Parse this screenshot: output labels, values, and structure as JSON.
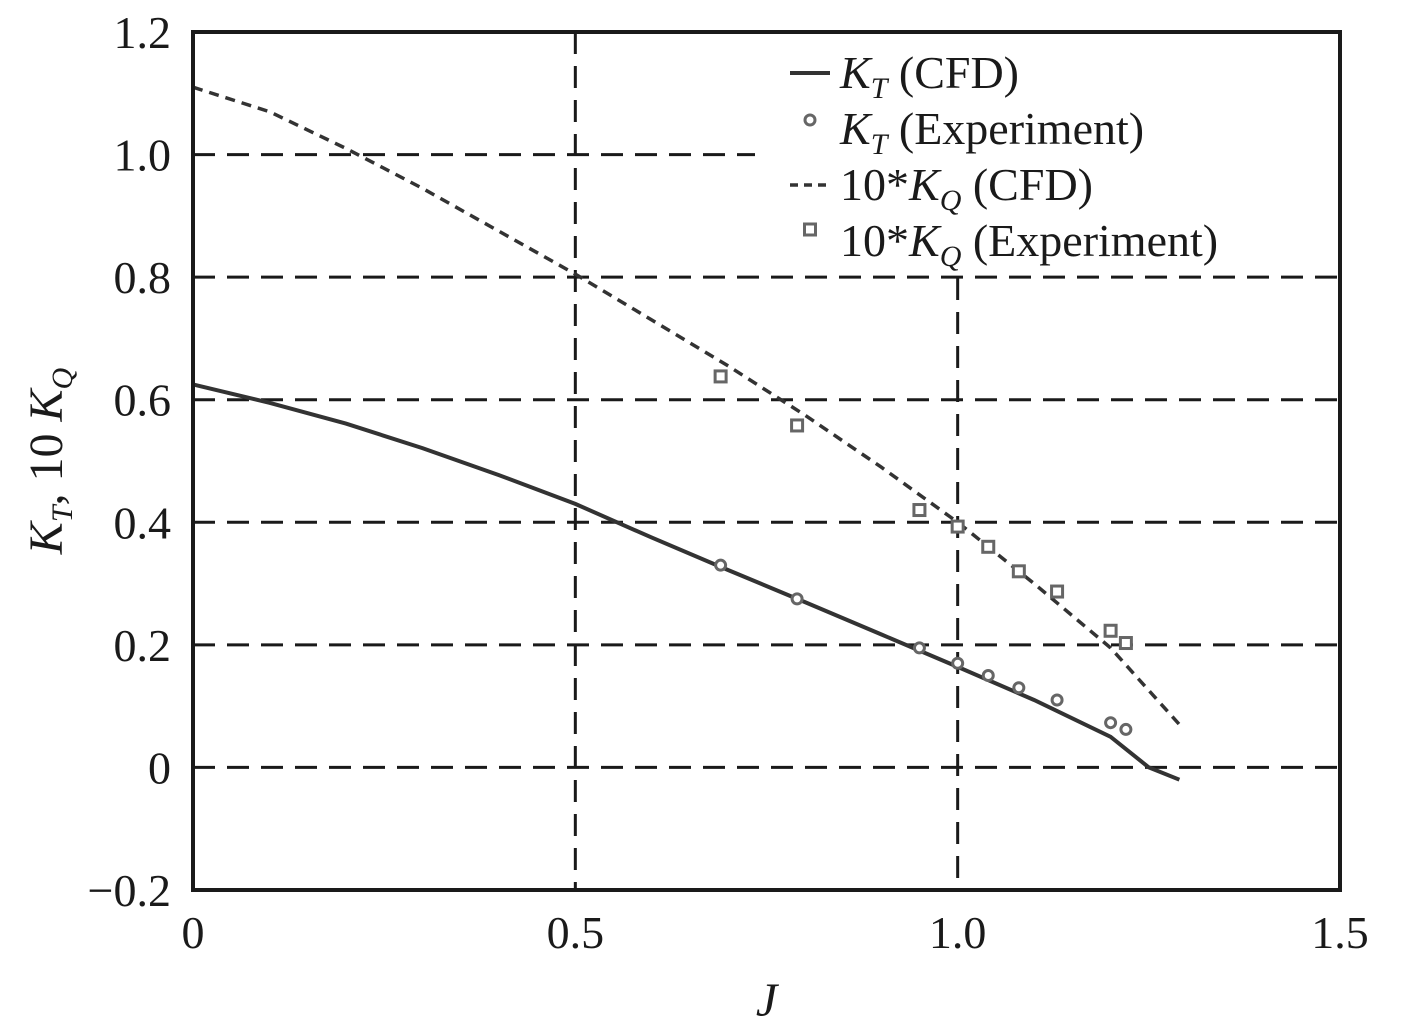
{
  "chart_data": {
    "type": "line",
    "xlabel": "J",
    "ylabel": {
      "main": "K",
      "sub1": "T",
      "mid": ", 10 ",
      "main2": "K",
      "sub2": "Q"
    },
    "xlim": [
      0,
      1.5
    ],
    "ylim": [
      -0.2,
      1.2
    ],
    "x_ticks": [
      0,
      0.5,
      1.0,
      1.5
    ],
    "x_tick_labels": [
      "0",
      "0.5",
      "1.0",
      "1.5"
    ],
    "y_ticks": [
      -0.2,
      0,
      0.2,
      0.4,
      0.6,
      0.8,
      1.0,
      1.2
    ],
    "y_tick_labels": [
      "−0.2",
      "0",
      "0.2",
      "0.4",
      "0.6",
      "0.8",
      "1.0",
      "1.2"
    ],
    "grid": true,
    "legend_position": "top-right",
    "series": [
      {
        "kind": "solid-line",
        "legend": {
          "sym": "K",
          "sub": "T",
          "prefix": "",
          "suffix": " (CFD)"
        },
        "color": "#333333",
        "points": [
          [
            0,
            0.625
          ],
          [
            0.1,
            0.595
          ],
          [
            0.2,
            0.561
          ],
          [
            0.3,
            0.521
          ],
          [
            0.4,
            0.477
          ],
          [
            0.5,
            0.43
          ],
          [
            0.6,
            0.375
          ],
          [
            0.7,
            0.322
          ],
          [
            0.8,
            0.27
          ],
          [
            0.9,
            0.217
          ],
          [
            1.0,
            0.164
          ],
          [
            1.1,
            0.11
          ],
          [
            1.2,
            0.05
          ],
          [
            1.25,
            0.0
          ],
          [
            1.29,
            -0.02
          ]
        ]
      },
      {
        "kind": "circle-markers",
        "legend": {
          "sym": "K",
          "sub": "T",
          "prefix": "",
          "suffix": " (Experiment)"
        },
        "color": "#666666",
        "points": [
          [
            0.69,
            0.33
          ],
          [
            0.79,
            0.275
          ],
          [
            0.95,
            0.195
          ],
          [
            1.0,
            0.17
          ],
          [
            1.04,
            0.15
          ],
          [
            1.08,
            0.13
          ],
          [
            1.13,
            0.11
          ],
          [
            1.2,
            0.073
          ],
          [
            1.22,
            0.062
          ]
        ]
      },
      {
        "kind": "dashed-line",
        "legend": {
          "sym": "K",
          "sub": "Q",
          "prefix": "10*",
          "suffix": " (CFD)"
        },
        "color": "#333333",
        "points": [
          [
            0,
            1.11
          ],
          [
            0.1,
            1.07
          ],
          [
            0.2,
            1.01
          ],
          [
            0.3,
            0.945
          ],
          [
            0.4,
            0.875
          ],
          [
            0.5,
            0.805
          ],
          [
            0.6,
            0.73
          ],
          [
            0.7,
            0.655
          ],
          [
            0.8,
            0.575
          ],
          [
            0.9,
            0.49
          ],
          [
            1.0,
            0.4
          ],
          [
            1.1,
            0.3
          ],
          [
            1.2,
            0.195
          ],
          [
            1.29,
            0.07
          ]
        ]
      },
      {
        "kind": "square-markers",
        "legend": {
          "sym": "K",
          "sub": "Q",
          "prefix": "10*",
          "suffix": " (Experiment)"
        },
        "color": "#666666",
        "points": [
          [
            0.69,
            0.638
          ],
          [
            0.79,
            0.558
          ],
          [
            0.95,
            0.42
          ],
          [
            1.0,
            0.393
          ],
          [
            1.04,
            0.36
          ],
          [
            1.08,
            0.32
          ],
          [
            1.13,
            0.287
          ],
          [
            1.2,
            0.223
          ],
          [
            1.22,
            0.203
          ]
        ]
      }
    ]
  }
}
